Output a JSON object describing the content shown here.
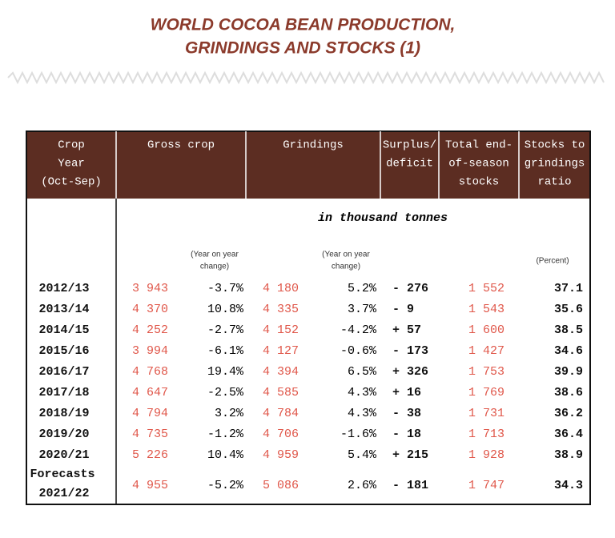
{
  "title": [
    "WORLD COCOA BEAN PRODUCTION,",
    "GRINDINGS AND STOCKS (1)"
  ],
  "table": {
    "headers": [
      [
        "Crop",
        "Year",
        "(Oct-Sep)"
      ],
      [
        "Gross crop"
      ],
      [
        "Grindings"
      ],
      [
        "Surplus/",
        "deficit"
      ],
      [
        "Total end-",
        "of-season",
        "stocks"
      ],
      [
        "Stocks to",
        "grindings",
        "ratio"
      ]
    ],
    "unit": "in thousand tonnes",
    "notes": {
      "gross_change": [
        "(Year on year",
        "change)"
      ],
      "grindings_change": [
        "(Year on year",
        "change)"
      ],
      "ratio": "(Percent)"
    },
    "forecast_label": "Forecasts",
    "rows": [
      [
        "2012/13",
        "3 943",
        "-3.7%",
        "4 180",
        "5.2%",
        "- 276",
        "1 552",
        "37.1"
      ],
      [
        "2013/14",
        "4 370",
        "10.8%",
        "4 335",
        "3.7%",
        "- 9",
        "1 543",
        "35.6"
      ],
      [
        "2014/15",
        "4 252",
        "-2.7%",
        "4 152",
        "-4.2%",
        "+ 57",
        "1 600",
        "38.5"
      ],
      [
        "2015/16",
        "3 994",
        "-6.1%",
        "4 127",
        "-0.6%",
        "- 173",
        "1 427",
        "34.6"
      ],
      [
        "2016/17",
        "4 768",
        "19.4%",
        "4 394",
        "6.5%",
        "+ 326",
        "1 753",
        "39.9"
      ],
      [
        "2017/18",
        "4 647",
        "-2.5%",
        "4 585",
        "4.3%",
        "+ 16",
        "1 769",
        "38.6"
      ],
      [
        "2018/19",
        "4 794",
        "3.2%",
        "4 784",
        "4.3%",
        "- 38",
        "1 731",
        "36.2"
      ],
      [
        "2019/20",
        "4 735",
        "-1.2%",
        "4 706",
        "-1.6%",
        "- 18",
        "1 713",
        "36.4"
      ],
      [
        "2020/21",
        "5 226",
        "10.4%",
        "4 959",
        "5.4%",
        "+ 215",
        "1 928",
        "38.9"
      ],
      [
        "2021/22",
        "4 955",
        "-5.2%",
        "5 086",
        "2.6%",
        "- 181",
        "1 747",
        "34.3"
      ]
    ]
  }
}
